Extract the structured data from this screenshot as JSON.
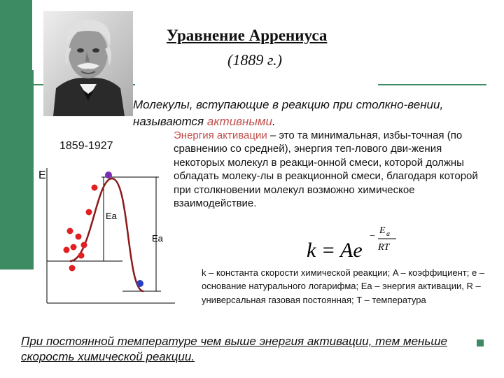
{
  "title": "Уравнение Аррениуса",
  "year": "(1889 г.)",
  "lifespan": "1859-1927",
  "molecules_text_pre": "Молекулы, вступающие в реакцию при столкно-вении, называются ",
  "molecules_text_highlight": "активными",
  "molecules_text_post": ".",
  "definition_highlight": "Энергия активации",
  "definition_text": " – это та минимальная, избы-точная (по сравнению  со средней), энергия теп-лового дви-жения некоторых молекул в реакци-онной смеси, которой должны обладать молеку-лы в реакционной смеси, благодаря которой при столкновении молекул возможно химическое взаимодействие.",
  "chart": {
    "axis_label": "E",
    "ea_label_left": "Ea",
    "ea_label_right": "Ea"
  },
  "formula": {
    "lhs": "k = Ae",
    "exp_num": "E",
    "exp_num_sub": "a",
    "exp_den": "RT",
    "exp_sign": "−"
  },
  "legend_text": "k – константа скорости химической реакции; A – коэффициент; e – основание натурального логарифма; Ea – энергия активации, R – универсальная газовая постоянная; T – температура",
  "conclusion": "При постоянной температуре чем выше энергия активации, тем меньше скорость химической реакции.",
  "colors": {
    "accent_green": "#3d8b63",
    "highlight_red": "#c0504d",
    "curve": "#8b1a1a",
    "red_particles": "#e02020",
    "blue_particle": "#2b3fc0",
    "purple_particle": "#7a2fb0"
  },
  "icons": [
    "portrait-photo"
  ]
}
